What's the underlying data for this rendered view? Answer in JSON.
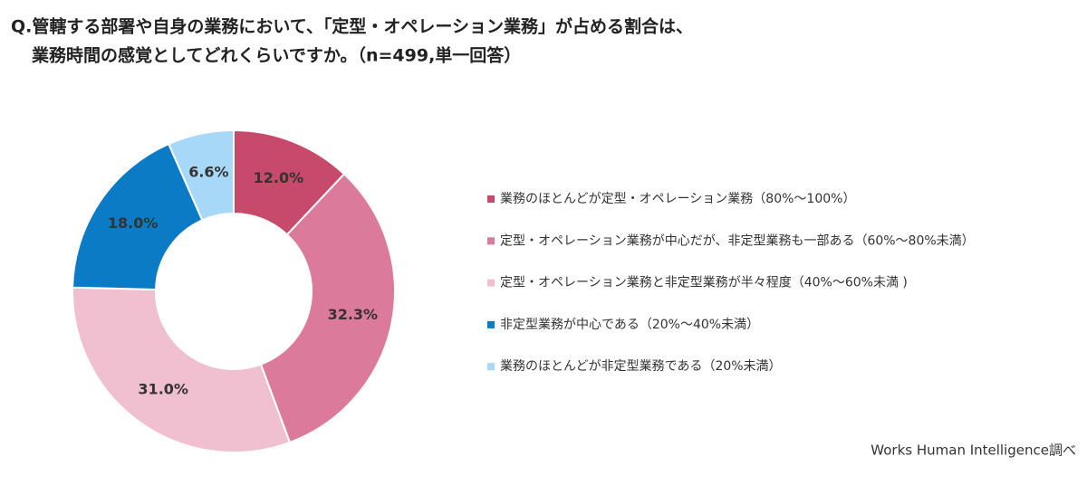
{
  "chart_data": {
    "type": "donut",
    "title": "Q.管轄する部署や自身の業務において、「定型・オペレーション業務」が占める割合は、",
    "subtitle": "業務時間の感覚としてどれくらいですか。（n=499,単一回答）",
    "categories": [
      "業務のほとんどが定型・オペレーション業務（80%～100%）",
      "定型・オペレーション業務が中心だが、非定型業務も一部ある（60%～80%未満）",
      "定型・オペレーション業務と非定型業務が半々程度（40%～60%未満 )",
      "非定型業務が中心である（20%～40%未満）",
      "業務のほとんどが非定型業務である（20%未満）"
    ],
    "values": [
      12.0,
      32.3,
      31.0,
      18.0,
      6.6
    ],
    "value_labels": [
      "12.0%",
      "32.3%",
      "31.0%",
      "18.0%",
      "6.6%"
    ],
    "colors": [
      "#c84a6a",
      "#dc7a9c",
      "#f0c0d0",
      "#0a7bc4",
      "#a8d8f8"
    ],
    "source": "Works Human Intelligence調べ"
  }
}
